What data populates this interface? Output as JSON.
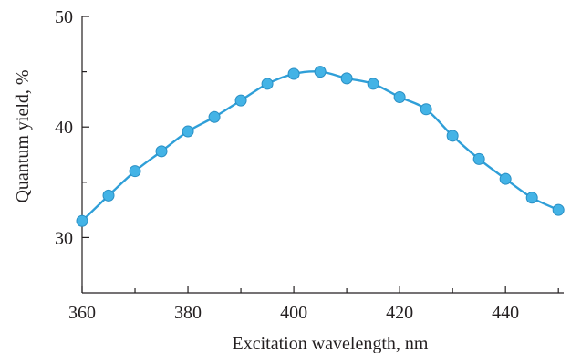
{
  "chart_data": {
    "type": "scatter",
    "xlabel": "Excitation wavelength, nm",
    "ylabel": "Quantum yield, %",
    "xlim": [
      360,
      451
    ],
    "ylim": [
      25,
      50
    ],
    "xticks": [
      360,
      380,
      400,
      420,
      440
    ],
    "yticks": [
      30,
      40,
      50
    ],
    "grid": false,
    "colors": {
      "series": "#2f9fd8",
      "point_fill": "#43b3e6",
      "point_stroke": "#2a8fc4",
      "axis": "#231f20"
    },
    "series": [
      {
        "x": [
          360,
          365,
          370,
          375,
          380,
          385,
          390,
          395,
          400,
          405,
          410,
          415,
          420,
          425,
          430,
          435,
          440,
          445,
          450
        ],
        "values": [
          31.5,
          33.8,
          36.0,
          37.8,
          39.6,
          40.9,
          42.4,
          43.9,
          44.8,
          45.0,
          44.4,
          43.9,
          42.7,
          41.6,
          39.2,
          37.1,
          35.3,
          33.6,
          32.5
        ]
      }
    ]
  }
}
